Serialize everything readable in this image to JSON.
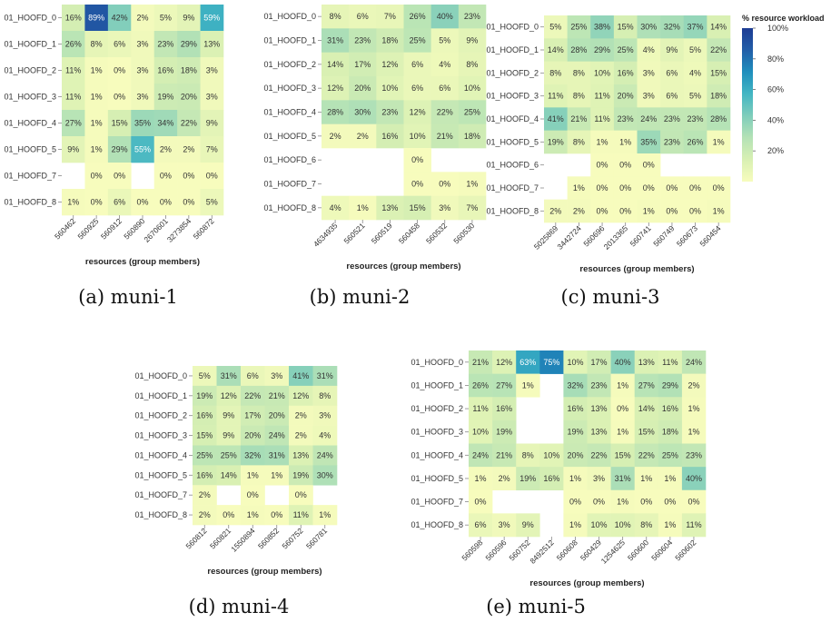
{
  "chart_data": [
    {
      "type": "heatmap",
      "caption": "(a) muni-1",
      "xlabel": "resources (group members)",
      "rows": [
        "01_HOOFD_0",
        "01_HOOFD_1",
        "01_HOOFD_2",
        "01_HOOFD_3",
        "01_HOOFD_4",
        "01_HOOFD_5",
        "01_HOOFD_7",
        "01_HOOFD_8"
      ],
      "cols": [
        "560462",
        "560925",
        "560912",
        "560890",
        "2670601",
        "3273854",
        "560872"
      ],
      "values": [
        [
          16,
          89,
          42,
          2,
          5,
          9,
          59
        ],
        [
          26,
          8,
          6,
          3,
          23,
          29,
          13
        ],
        [
          11,
          1,
          0,
          3,
          16,
          18,
          3
        ],
        [
          11,
          1,
          0,
          3,
          19,
          20,
          3
        ],
        [
          27,
          1,
          15,
          35,
          34,
          22,
          9
        ],
        [
          9,
          1,
          29,
          55,
          2,
          2,
          7
        ],
        [
          null,
          0,
          0,
          null,
          0,
          0,
          0
        ],
        [
          1,
          0,
          6,
          0,
          0,
          0,
          5
        ]
      ]
    },
    {
      "type": "heatmap",
      "caption": "(b) muni-2",
      "xlabel": "resources (group members)",
      "rows": [
        "01_HOOFD_0",
        "01_HOOFD_1",
        "01_HOOFD_2",
        "01_HOOFD_3",
        "01_HOOFD_4",
        "01_HOOFD_5",
        "01_HOOFD_6",
        "01_HOOFD_7",
        "01_HOOFD_8"
      ],
      "cols": [
        "4634935",
        "560521",
        "560519",
        "560458",
        "560532",
        "560530"
      ],
      "values": [
        [
          8,
          6,
          7,
          26,
          40,
          23
        ],
        [
          31,
          23,
          18,
          25,
          5,
          9
        ],
        [
          14,
          17,
          12,
          6,
          4,
          8
        ],
        [
          12,
          20,
          10,
          6,
          6,
          10
        ],
        [
          28,
          30,
          23,
          12,
          22,
          25
        ],
        [
          2,
          2,
          16,
          10,
          21,
          18
        ],
        [
          null,
          null,
          null,
          0,
          null,
          null
        ],
        [
          null,
          null,
          null,
          0,
          0,
          1
        ],
        [
          4,
          1,
          13,
          15,
          3,
          7
        ]
      ]
    },
    {
      "type": "heatmap",
      "caption": "(c) muni-3",
      "xlabel": "resources (group members)",
      "rows": [
        "01_HOOFD_0",
        "01_HOOFD_1",
        "01_HOOFD_2",
        "01_HOOFD_3",
        "01_HOOFD_4",
        "01_HOOFD_5",
        "01_HOOFD_6",
        "01_HOOFD_7",
        "01_HOOFD_8"
      ],
      "cols": [
        "5025869",
        "3442724",
        "560696",
        "2013365",
        "560741",
        "560749",
        "560673",
        "560454"
      ],
      "values": [
        [
          5,
          25,
          38,
          15,
          30,
          32,
          37,
          14
        ],
        [
          14,
          28,
          29,
          25,
          4,
          9,
          5,
          22
        ],
        [
          8,
          8,
          10,
          16,
          3,
          6,
          4,
          15
        ],
        [
          11,
          8,
          11,
          20,
          3,
          6,
          5,
          18
        ],
        [
          41,
          21,
          11,
          23,
          24,
          23,
          23,
          28
        ],
        [
          19,
          8,
          1,
          1,
          35,
          23,
          26,
          1
        ],
        [
          null,
          null,
          0,
          0,
          0,
          null,
          null,
          null
        ],
        [
          null,
          1,
          0,
          0,
          0,
          0,
          0,
          0
        ],
        [
          2,
          2,
          0,
          0,
          1,
          0,
          0,
          1
        ]
      ]
    },
    {
      "type": "heatmap",
      "caption": "(d) muni-4",
      "xlabel": "resources (group members)",
      "rows": [
        "01_HOOFD_0",
        "01_HOOFD_1",
        "01_HOOFD_2",
        "01_HOOFD_3",
        "01_HOOFD_4",
        "01_HOOFD_5",
        "01_HOOFD_7",
        "01_HOOFD_8"
      ],
      "cols": [
        "560812",
        "560821",
        "1550894",
        "560852",
        "560752",
        "560781"
      ],
      "values": [
        [
          5,
          31,
          6,
          3,
          41,
          31
        ],
        [
          19,
          12,
          22,
          21,
          12,
          8
        ],
        [
          16,
          9,
          17,
          20,
          2,
          3
        ],
        [
          15,
          9,
          20,
          24,
          2,
          4
        ],
        [
          25,
          25,
          32,
          31,
          13,
          24
        ],
        [
          16,
          14,
          1,
          1,
          19,
          30
        ],
        [
          2,
          null,
          0,
          null,
          0,
          null
        ],
        [
          2,
          0,
          1,
          0,
          11,
          1
        ]
      ]
    },
    {
      "type": "heatmap",
      "caption": "(e) muni-5",
      "xlabel": "resources (group members)",
      "rows": [
        "01_HOOFD_0",
        "01_HOOFD_1",
        "01_HOOFD_2",
        "01_HOOFD_3",
        "01_HOOFD_4",
        "01_HOOFD_5",
        "01_HOOFD_7",
        "01_HOOFD_8"
      ],
      "cols": [
        "560598",
        "560596",
        "560752",
        "8492512",
        "560608",
        "560429",
        "1254625",
        "560600",
        "560604",
        "560602"
      ],
      "values": [
        [
          21,
          12,
          63,
          75,
          10,
          17,
          40,
          13,
          11,
          24
        ],
        [
          26,
          27,
          1,
          null,
          32,
          23,
          1,
          27,
          29,
          2
        ],
        [
          11,
          16,
          null,
          null,
          16,
          13,
          0,
          14,
          16,
          1
        ],
        [
          10,
          19,
          null,
          null,
          19,
          13,
          1,
          15,
          18,
          1
        ],
        [
          24,
          21,
          8,
          10,
          20,
          22,
          15,
          22,
          25,
          23
        ],
        [
          1,
          2,
          19,
          16,
          1,
          3,
          31,
          1,
          1,
          40
        ],
        [
          0,
          null,
          null,
          null,
          0,
          0,
          1,
          0,
          0,
          0
        ],
        [
          6,
          3,
          9,
          null,
          1,
          10,
          10,
          8,
          1,
          11
        ]
      ]
    }
  ],
  "legend": {
    "title": "% resource workload",
    "ticks": [
      "100%",
      "80%",
      "60%",
      "40%",
      "20%"
    ],
    "tick_values": [
      100,
      80,
      60,
      40,
      20
    ],
    "colors": [
      "#f7fcbd",
      "#d8f0b3",
      "#b4e2b6",
      "#7fcdbb",
      "#43b6c3",
      "#1f8fbd",
      "#225ea8",
      "#1d3c93"
    ]
  }
}
